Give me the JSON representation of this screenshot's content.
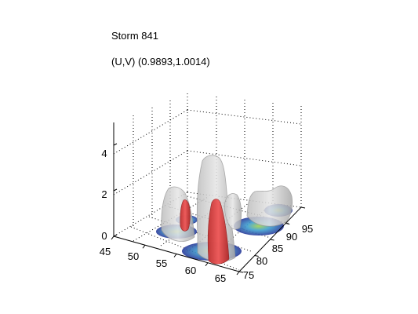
{
  "chart_data": {
    "type": "3d-surface",
    "title": "Storm 841",
    "subtitle": "(U,V) (0.9893,1.0014)",
    "xlabel": "",
    "ylabel": "",
    "zlabel": "",
    "x_ticks": [
      "45",
      "50",
      "55",
      "60",
      "65"
    ],
    "y_ticks": [
      "75",
      "80",
      "85",
      "90",
      "95"
    ],
    "z_ticks": [
      "0",
      "2",
      "4"
    ],
    "xlim": [
      45,
      65
    ],
    "ylim": [
      75,
      95
    ],
    "zlim": [
      0,
      5
    ],
    "grid": true,
    "colors": {
      "outer_isosurface": "#c8c8c8",
      "inner_isosurface": "#e04040",
      "floor_low": "#2a3a9a",
      "floor_mid": "#3fa0d0",
      "floor_high": "#a0d050"
    },
    "features": [
      {
        "name": "peak-center",
        "x": 55.5,
        "y": 87,
        "z_outer": 3.8,
        "z_inner": 2.0
      },
      {
        "name": "peak-left",
        "x": 50,
        "y": 86,
        "z_outer": 2.0,
        "z_inner": 1.8
      },
      {
        "name": "peak-right",
        "x": 60,
        "y": 93,
        "z_outer": 2.5,
        "z_inner": 0
      }
    ]
  }
}
